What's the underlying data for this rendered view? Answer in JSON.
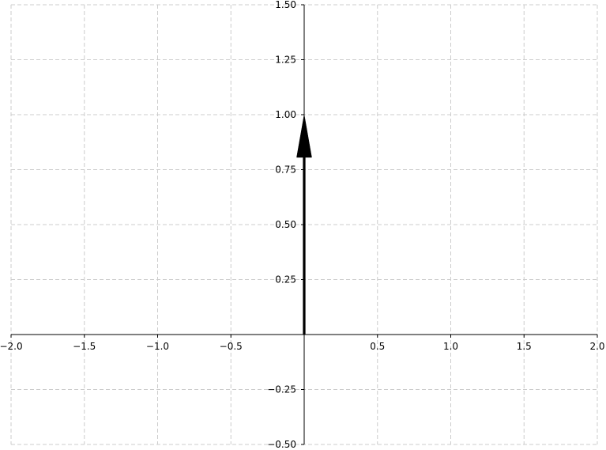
{
  "chart_data": {
    "type": "vector",
    "title": "",
    "xlabel": "",
    "ylabel": "",
    "xlim": [
      -2.0,
      2.0
    ],
    "ylim": [
      -0.5,
      1.5
    ],
    "grid": true,
    "x_ticks": [
      {
        "value": -2.0,
        "label": "−2.0"
      },
      {
        "value": -1.5,
        "label": "−1.5"
      },
      {
        "value": -1.0,
        "label": "−1.0"
      },
      {
        "value": -0.5,
        "label": "−0.5"
      },
      {
        "value": 0.5,
        "label": "0.5"
      },
      {
        "value": 1.0,
        "label": "1.0"
      },
      {
        "value": 1.5,
        "label": "1.5"
      },
      {
        "value": 2.0,
        "label": "2.0"
      }
    ],
    "y_ticks": [
      {
        "value": 1.5,
        "label": "1.50"
      },
      {
        "value": 1.25,
        "label": "1.25"
      },
      {
        "value": 1.0,
        "label": "1.00"
      },
      {
        "value": 0.75,
        "label": "0.75"
      },
      {
        "value": 0.5,
        "label": "0.50"
      },
      {
        "value": 0.25,
        "label": "0.25"
      },
      {
        "value": -0.25,
        "label": "−0.25"
      },
      {
        "value": -0.5,
        "label": "−0.50"
      }
    ],
    "vectors": [
      {
        "x0": 0,
        "y0": 0,
        "x1": 0,
        "y1": 1.0,
        "color": "#000000"
      }
    ]
  }
}
